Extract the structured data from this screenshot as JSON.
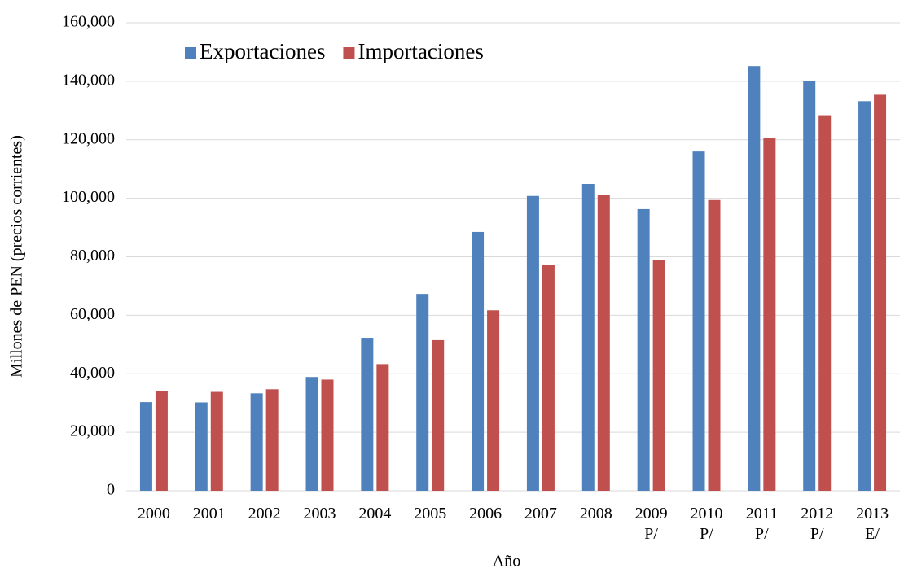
{
  "chart_data": {
    "type": "bar",
    "y_label": "Millones de PEN (precios corrientes)",
    "x_label": "Año",
    "categories": [
      "2000",
      "2001",
      "2002",
      "2003",
      "2004",
      "2005",
      "2006",
      "2007",
      "2008",
      "2009 P/",
      "2010 P/",
      "2011 P/",
      "2012 P/",
      "2013 E/"
    ],
    "series": [
      {
        "name": "Exportaciones",
        "color": "#4f81bd",
        "values": [
          30300,
          30200,
          33300,
          38900,
          52300,
          67300,
          88500,
          100800,
          104900,
          96300,
          116000,
          145200,
          140000,
          133200
        ]
      },
      {
        "name": "Importaciones",
        "color": "#c0504d",
        "values": [
          34000,
          33800,
          34700,
          38000,
          43300,
          51500,
          61700,
          77200,
          101200,
          78900,
          99400,
          120500,
          128400,
          135400
        ]
      }
    ],
    "ylim": [
      0,
      160000
    ],
    "yticks": [
      0,
      {
        "value": 20000,
        "label": "20,000"
      },
      {
        "value": 40000,
        "label": "40,000"
      },
      {
        "value": 60000,
        "label": "60,000"
      },
      {
        "value": 80000,
        "label": "80,000"
      },
      {
        "value": 100000,
        "label": "100,000"
      },
      {
        "value": 120000,
        "label": "120,000"
      },
      {
        "value": 140000,
        "label": "140,000"
      },
      {
        "value": 160000,
        "label": "160,000"
      }
    ],
    "grid": true,
    "legend": "top-left"
  }
}
